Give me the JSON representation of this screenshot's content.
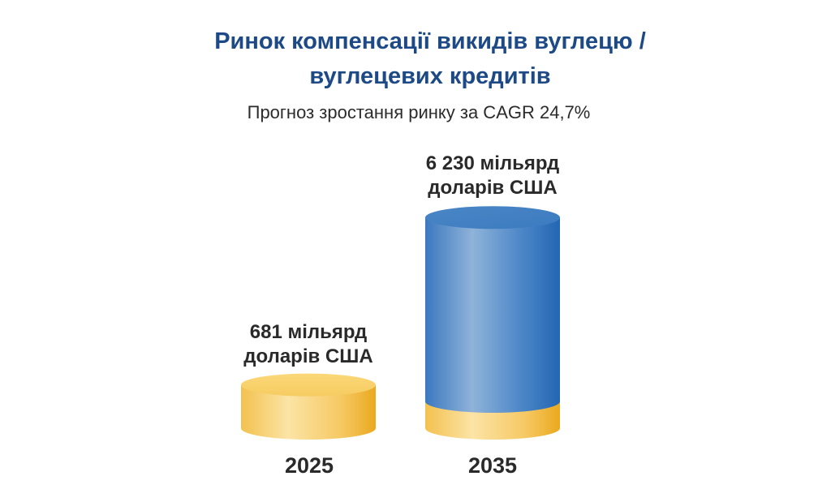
{
  "chart_data": {
    "type": "bar",
    "title": "Ринок компенсації викидів вуглецю / вуглецевих кредитів",
    "title_lines": [
      "Ринок компенсації викидів вуглецю /",
      "вуглецевих кредитів"
    ],
    "subtitle": "Прогноз зростання ринку за CAGR 24,7%",
    "categories": [
      "2025",
      "2035"
    ],
    "values": [
      681,
      6230
    ],
    "unit": "мільярд доларів США",
    "data_labels": [
      [
        "681 мільярд",
        "доларів США"
      ],
      [
        "6 230 мільярд",
        "доларів США"
      ]
    ],
    "xlabel": "",
    "ylabel": "",
    "colors": {
      "base": "#f5c24f",
      "bar": "#3f7ec4",
      "title": "#1d4a86"
    }
  }
}
